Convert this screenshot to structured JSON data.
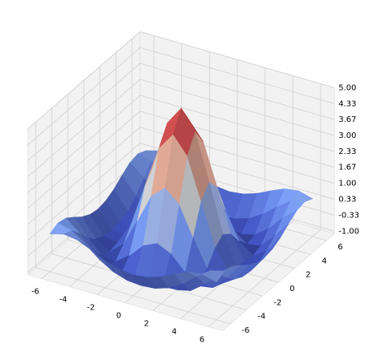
{
  "chart_data": {
    "type": "surface3d",
    "x": [
      -6,
      -5,
      -4,
      -3,
      -2,
      -1,
      0,
      1,
      2,
      3,
      4,
      5,
      6
    ],
    "y": [
      -6,
      -5,
      -4,
      -3,
      -2,
      -1,
      0,
      1,
      2,
      3,
      4,
      5,
      6
    ],
    "z": [
      [
        0.48,
        0.64,
        0.56,
        0.31,
        0.03,
        -0.16,
        -0.23,
        -0.16,
        0.03,
        0.31,
        0.56,
        0.64,
        0.48
      ],
      [
        0.64,
        0.5,
        0.09,
        -0.37,
        -0.72,
        -0.91,
        -0.96,
        -0.91,
        -0.72,
        -0.37,
        0.09,
        0.5,
        0.64
      ],
      [
        0.56,
        0.09,
        -0.52,
        -0.96,
        -1.09,
        -1.0,
        -0.95,
        -1.0,
        -1.09,
        -0.96,
        -0.52,
        0.09,
        0.56
      ],
      [
        0.31,
        -0.37,
        -0.96,
        -1.05,
        -0.62,
        -0.03,
        0.24,
        -0.03,
        -0.62,
        -1.05,
        -0.96,
        -0.37,
        0.31
      ],
      [
        0.03,
        -0.72,
        -1.09,
        -0.62,
        0.54,
        1.76,
        2.27,
        1.76,
        0.54,
        -0.62,
        -1.09,
        -0.72,
        0.03
      ],
      [
        -0.16,
        -0.91,
        -1.0,
        -0.03,
        1.76,
        3.49,
        4.21,
        3.49,
        1.76,
        -0.03,
        -1.0,
        -0.91,
        -0.16
      ],
      [
        -0.23,
        -0.96,
        -0.95,
        0.24,
        2.27,
        4.21,
        5.0,
        4.21,
        2.27,
        0.24,
        -0.95,
        -0.96,
        -0.23
      ],
      [
        -0.16,
        -0.91,
        -1.0,
        -0.03,
        1.76,
        3.49,
        4.21,
        3.49,
        1.76,
        -0.03,
        -1.0,
        -0.91,
        -0.16
      ],
      [
        0.03,
        -0.72,
        -1.09,
        -0.62,
        0.54,
        1.76,
        2.27,
        1.76,
        0.54,
        -0.62,
        -1.09,
        -0.72,
        0.03
      ],
      [
        0.31,
        -0.37,
        -0.96,
        -1.05,
        -0.62,
        -0.03,
        0.24,
        -0.03,
        -0.62,
        -1.05,
        -0.96,
        -0.37,
        0.31
      ],
      [
        0.56,
        0.09,
        -0.52,
        -0.96,
        -1.09,
        -1.0,
        -0.95,
        -1.0,
        -1.09,
        -0.96,
        -0.52,
        0.09,
        0.56
      ],
      [
        0.64,
        0.5,
        0.09,
        -0.37,
        -0.72,
        -0.91,
        -0.96,
        -0.91,
        -0.72,
        -0.37,
        0.09,
        0.5,
        0.64
      ],
      [
        0.48,
        0.64,
        0.56,
        0.31,
        0.03,
        -0.16,
        -0.23,
        -0.16,
        0.03,
        0.31,
        0.56,
        0.64,
        0.48
      ]
    ],
    "xlim": [
      -7,
      7
    ],
    "ylim": [
      -7,
      7
    ],
    "zlim": [
      -1.1,
      5
    ],
    "xticks": [
      -6,
      -4,
      -2,
      0,
      2,
      4,
      6
    ],
    "yticks": [
      -6,
      -4,
      -2,
      0,
      2,
      4,
      6
    ],
    "zticks": [
      {
        "value": -1,
        "label": "-1.00"
      },
      {
        "value": -0.33,
        "label": "-0.33"
      },
      {
        "value": 0.33,
        "label": "0.33"
      },
      {
        "value": 1,
        "label": "1.00"
      },
      {
        "value": 1.67,
        "label": "1.67"
      },
      {
        "value": 2.33,
        "label": "2.33"
      },
      {
        "value": 3,
        "label": "3.00"
      },
      {
        "value": 3.67,
        "label": "3.67"
      },
      {
        "value": 4.33,
        "label": "4.33"
      },
      {
        "value": 5,
        "label": "5.00"
      }
    ],
    "colormap": [
      "#3b4cc0",
      "#7b9ff9",
      "#dcdddd",
      "#f49a7b",
      "#b40426"
    ],
    "grid": true
  }
}
